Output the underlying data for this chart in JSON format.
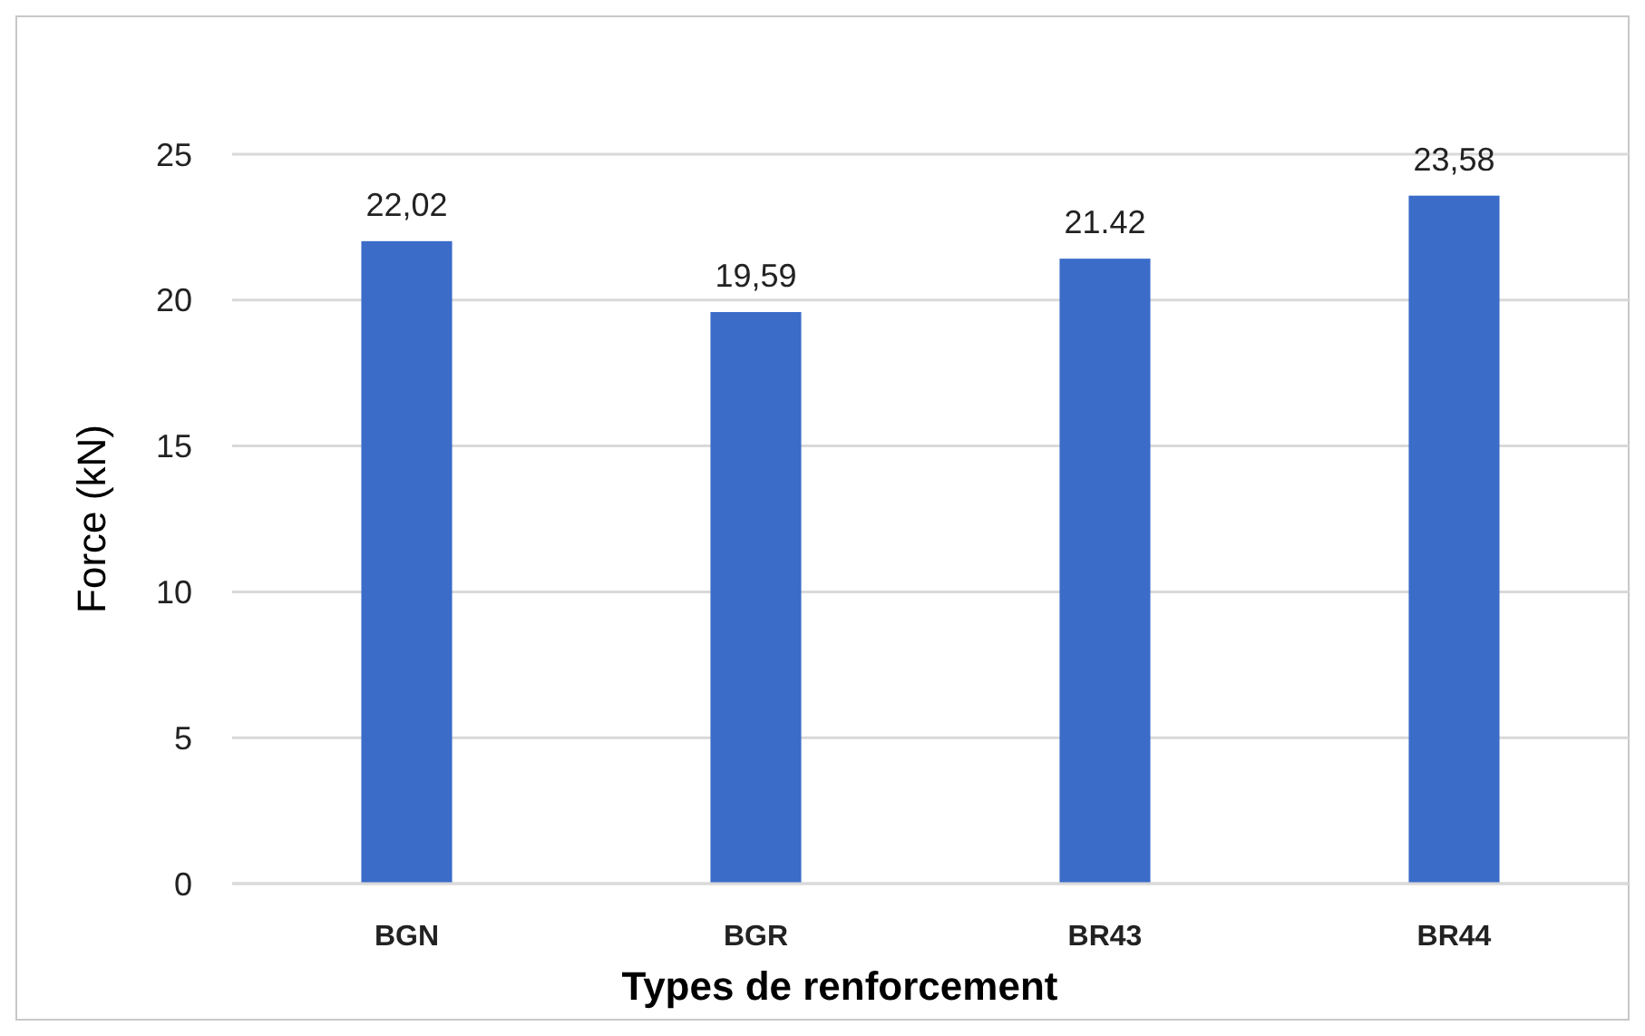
{
  "chart_data": {
    "type": "bar",
    "xlabel": "Types de renforcement",
    "ylabel": "Force (kN)",
    "categories": [
      "BGN",
      "BGR",
      "BR43",
      "BR44"
    ],
    "values": [
      22.02,
      19.59,
      21.42,
      23.58
    ],
    "value_labels": [
      "22,02",
      "19,59",
      "21.42",
      "23,58"
    ],
    "color": "#3a6cc8",
    "ylim": [
      0,
      25
    ],
    "yticks": [
      0,
      5,
      10,
      15,
      20,
      25
    ],
    "grid": "y"
  }
}
